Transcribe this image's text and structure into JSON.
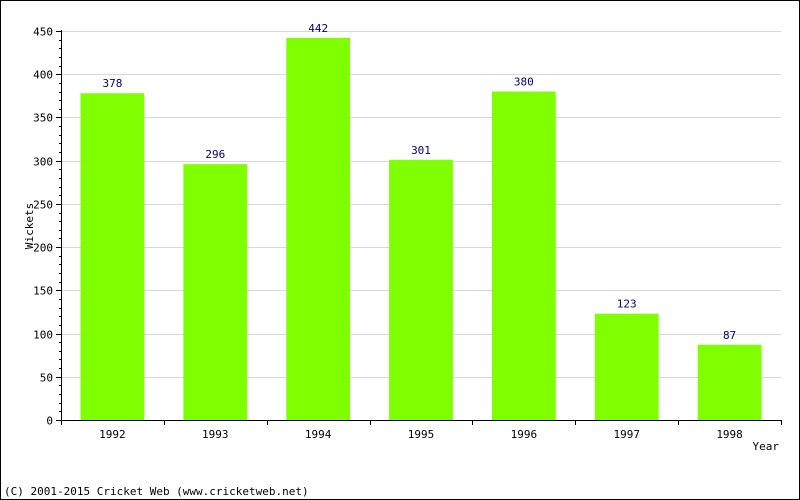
{
  "chart_data": {
    "type": "bar",
    "categories": [
      "1992",
      "1993",
      "1994",
      "1995",
      "1996",
      "1997",
      "1998"
    ],
    "values": [
      378,
      296,
      442,
      301,
      380,
      123,
      87
    ],
    "data_labels": [
      "378",
      "296",
      "442",
      "301",
      "380",
      "123",
      "87"
    ],
    "title": "",
    "xlabel": "Year",
    "ylabel": "Wickets",
    "ylim": [
      0,
      450
    ],
    "yticks": [
      0,
      50,
      100,
      150,
      200,
      250,
      300,
      350,
      400,
      450
    ],
    "ytick_labels": [
      "0",
      "50",
      "100",
      "150",
      "200",
      "250",
      "300",
      "350",
      "400",
      "450"
    ],
    "grid": true,
    "bar_color": "#80ff00",
    "label_color": "#000080",
    "grid_color": "#d8d8d8"
  },
  "footer": {
    "copyright": "(C) 2001-2015 Cricket Web (www.cricketweb.net)"
  }
}
